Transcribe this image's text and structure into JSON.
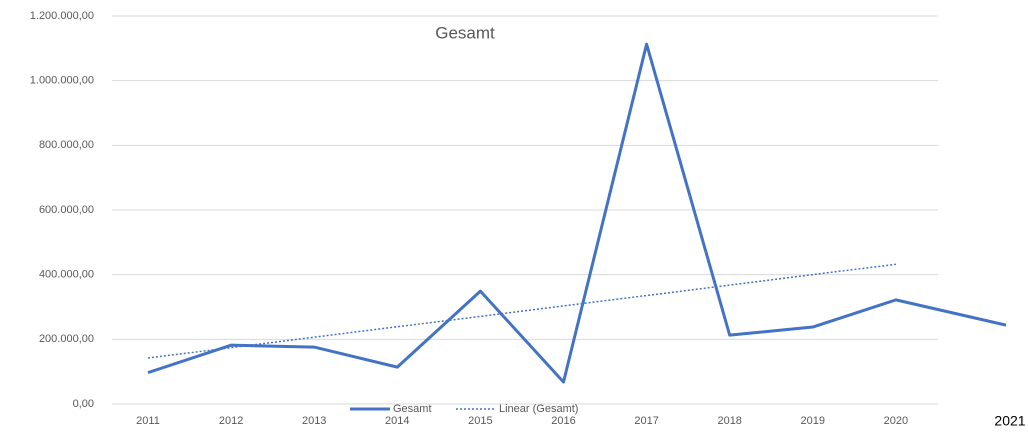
{
  "chart_data": {
    "type": "line",
    "title": "Gesamt",
    "categories": [
      "2011",
      "2012",
      "2013",
      "2014",
      "2015",
      "2016",
      "2017",
      "2018",
      "2019",
      "2020",
      "2021"
    ],
    "series": [
      {
        "name": "Gesamt",
        "color": "#4472c4",
        "values": [
          97000,
          182000,
          176000,
          114000,
          349000,
          68000,
          1113000,
          213000,
          238000,
          322000,
          244000
        ]
      },
      {
        "name": "Linear (Gesamt)",
        "color": "#4472c4",
        "trendline": "linear"
      }
    ],
    "ylim": [
      0,
      1200000
    ],
    "yticks": [
      {
        "value": 0,
        "label": "0,00"
      },
      {
        "value": 200000,
        "label": "200.000,00"
      },
      {
        "value": 400000,
        "label": "400.000,00"
      },
      {
        "value": 600000,
        "label": "600.000,00"
      },
      {
        "value": 800000,
        "label": "800.000,00"
      },
      {
        "value": 1000000,
        "label": "1.000.000,00"
      },
      {
        "value": 1200000,
        "label": "1.200.000,00"
      }
    ],
    "grid": true,
    "legend": "bottom"
  }
}
